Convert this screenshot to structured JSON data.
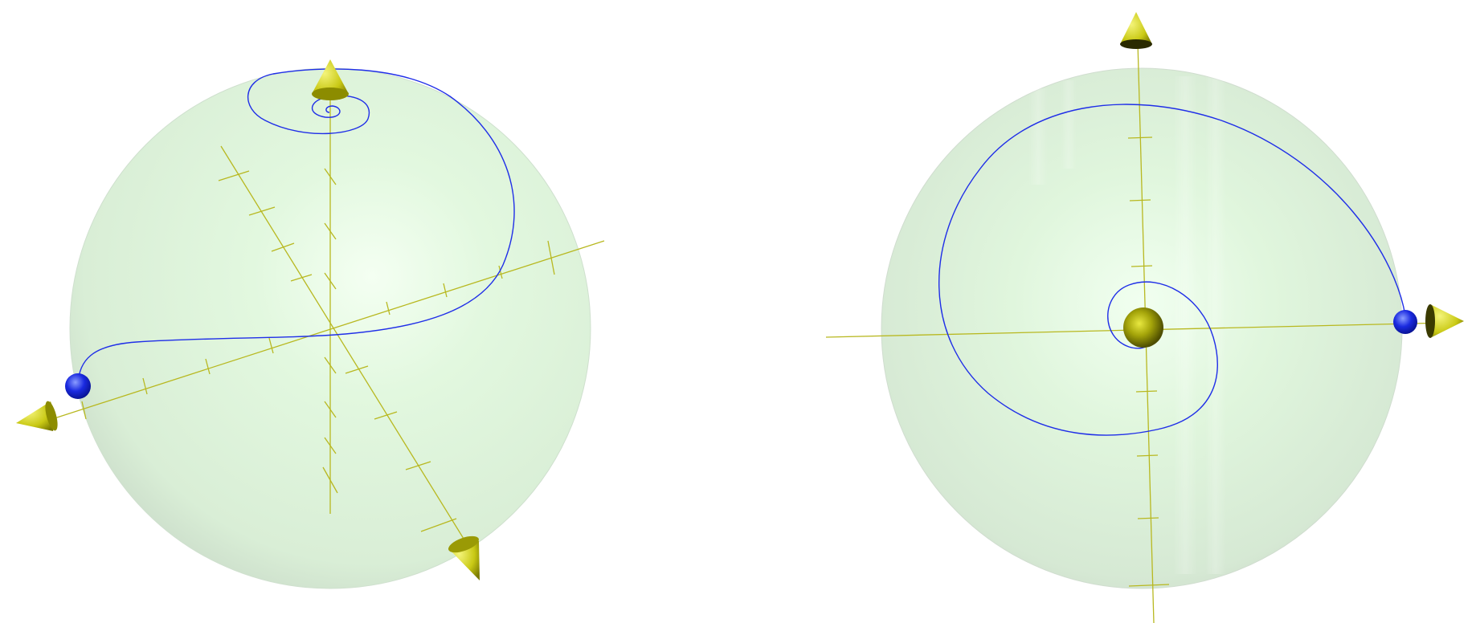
{
  "figure": {
    "panels": [
      {
        "id": "left",
        "view": "oblique"
      },
      {
        "id": "right",
        "view": "top-down"
      }
    ]
  },
  "colors": {
    "background": "#ffffff",
    "sphere_fill": "#d8f5d6",
    "sphere_edge": "#c9dec8",
    "axis": "#b5b51f",
    "cone": "#c8c812",
    "cone_dark": "#6d6d00",
    "trajectory": "#1f2ee8",
    "endpoint_ball": "#1414d9"
  },
  "icons": {
    "axis_arrow": "cone-arrowhead-icon",
    "trajectory_end": "sphere-marker-icon"
  }
}
